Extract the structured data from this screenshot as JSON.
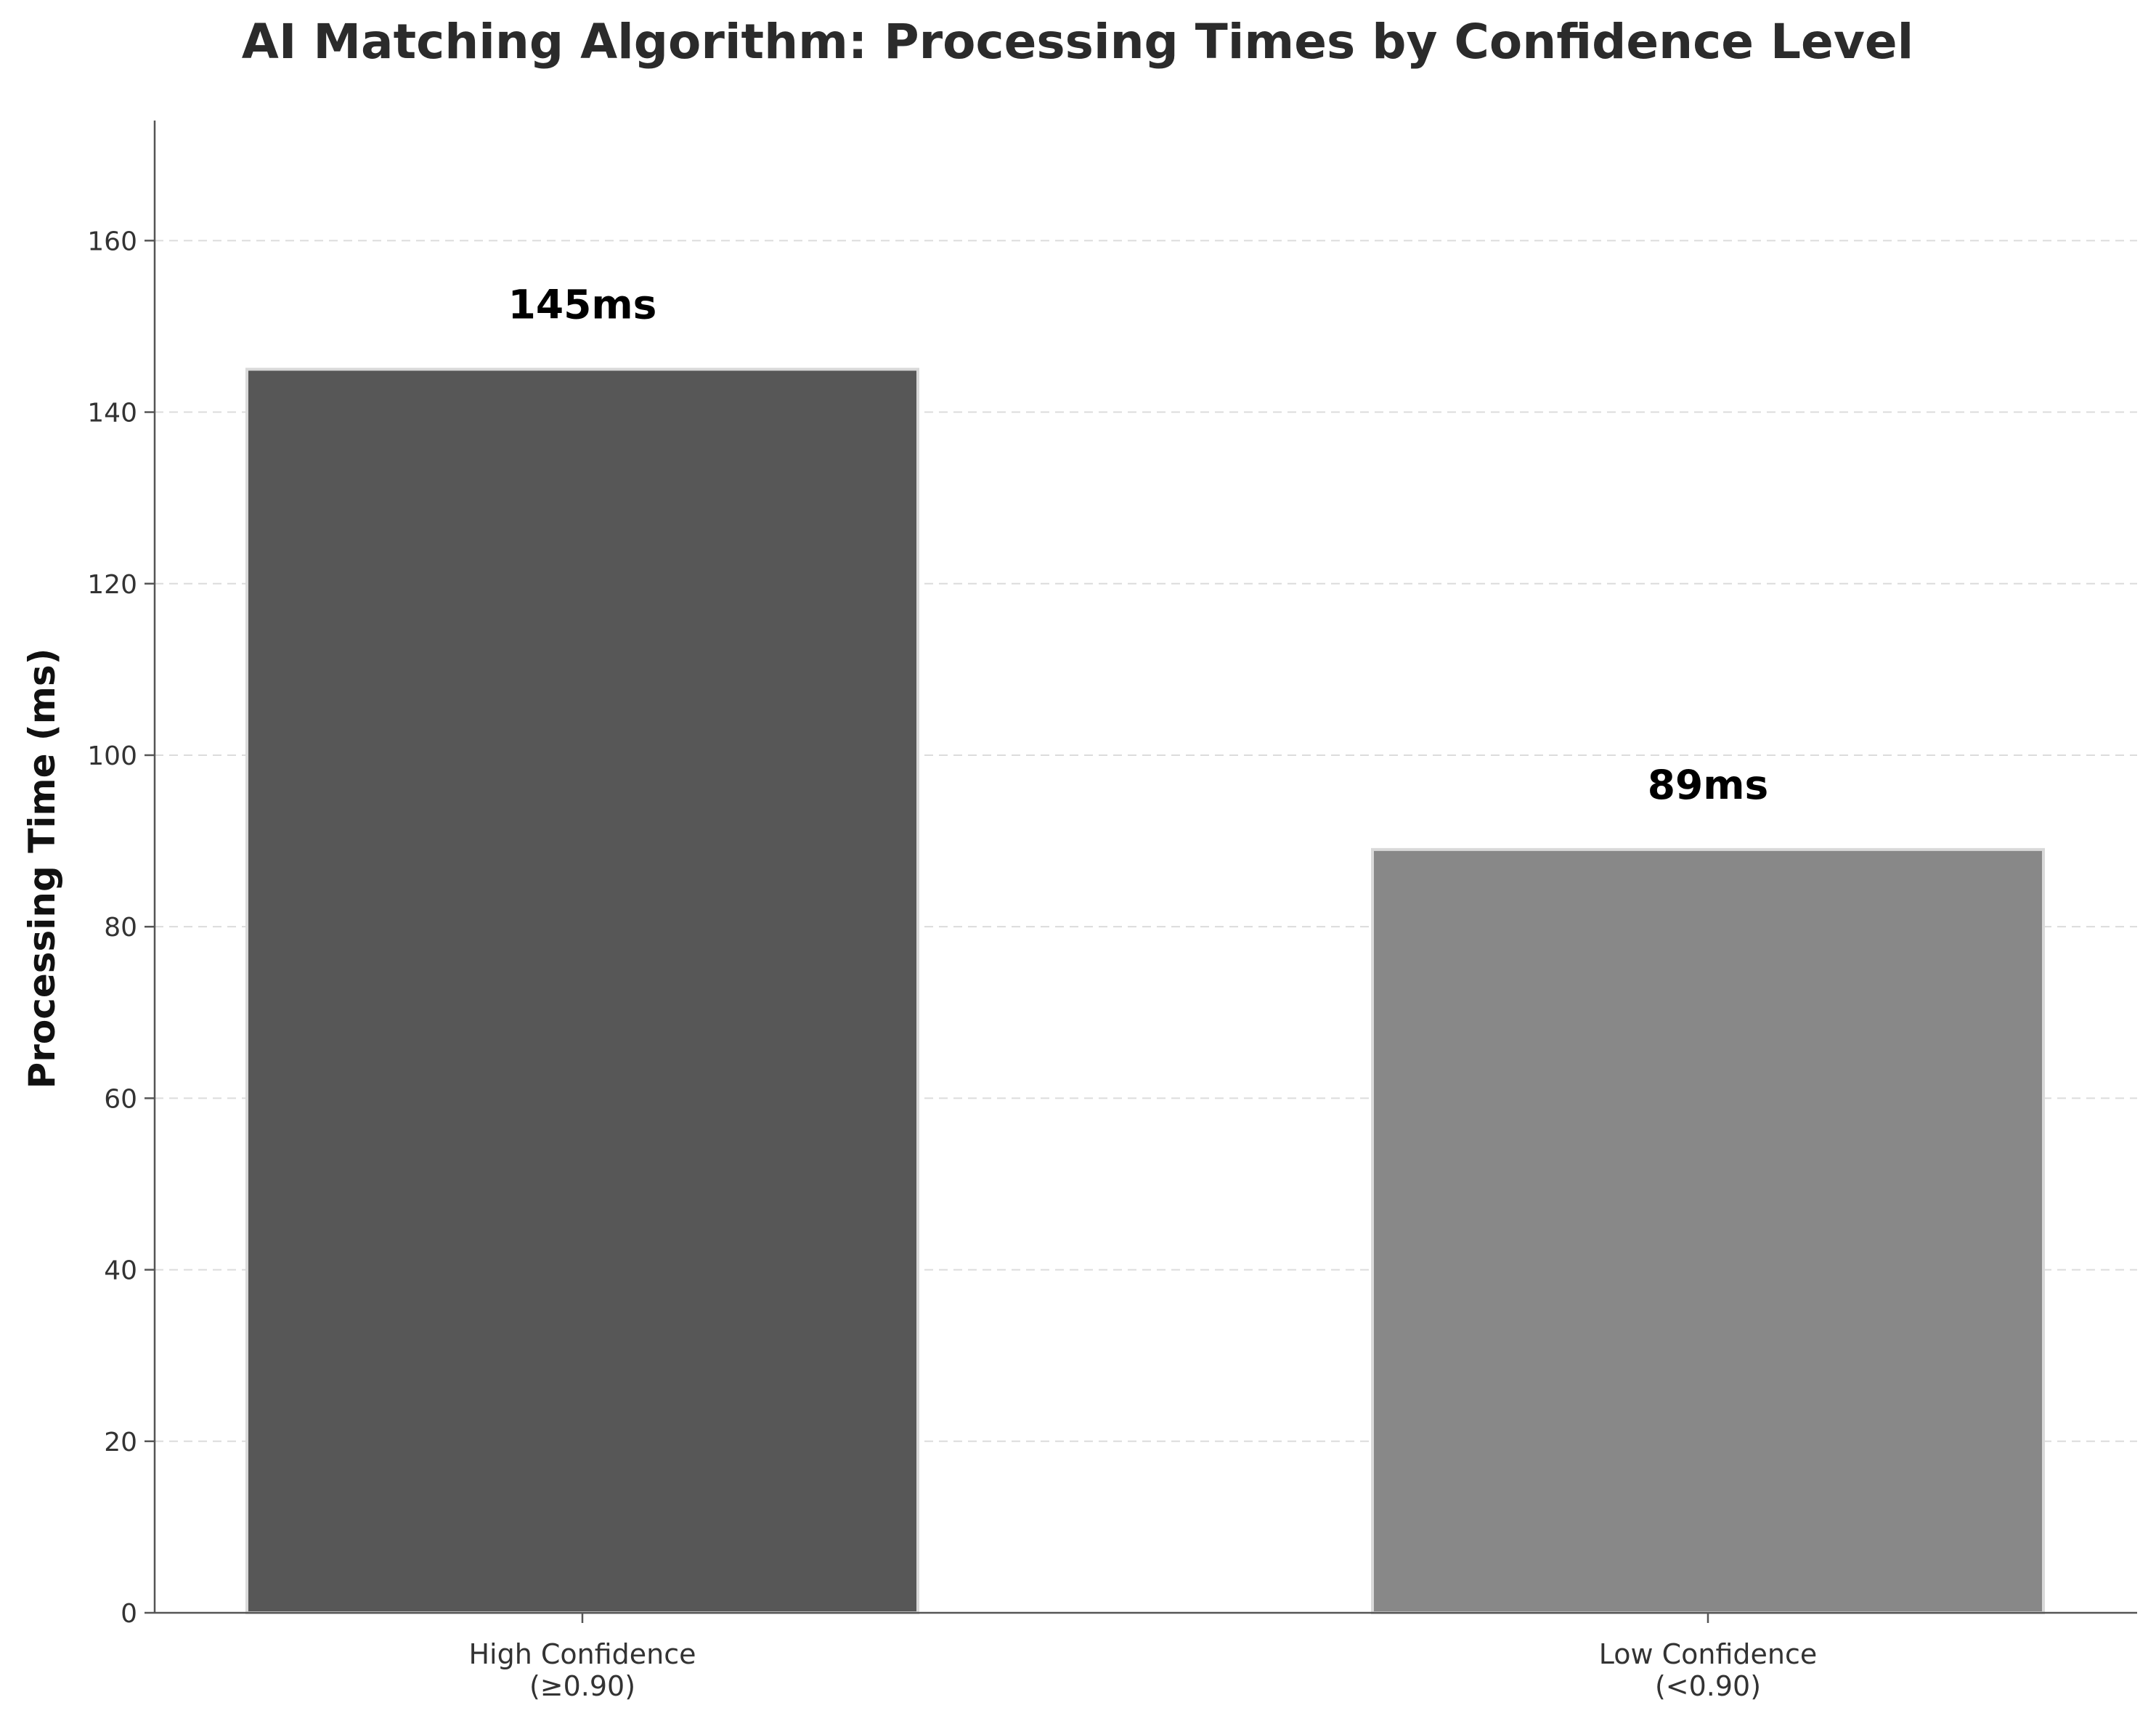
{
  "chart_data": {
    "type": "bar",
    "title": "AI Matching Algorithm: Processing Times by Confidence Level",
    "xlabel": "",
    "ylabel": "Processing Time (ms)",
    "categories": [
      [
        "High Confidence",
        "(≥0.90)"
      ],
      [
        "Low Confidence",
        "(<0.90)"
      ]
    ],
    "values": [
      145,
      89
    ],
    "data_labels": [
      "145ms",
      "89ms"
    ],
    "bar_colors": [
      "#575757",
      "#888888"
    ],
    "bar_edge_color": "#d9d9d9",
    "ylim": [
      0,
      174
    ],
    "yticks": [
      0,
      20,
      40,
      60,
      80,
      100,
      120,
      140,
      160
    ],
    "grid": "y-dashed",
    "legend": "none"
  }
}
